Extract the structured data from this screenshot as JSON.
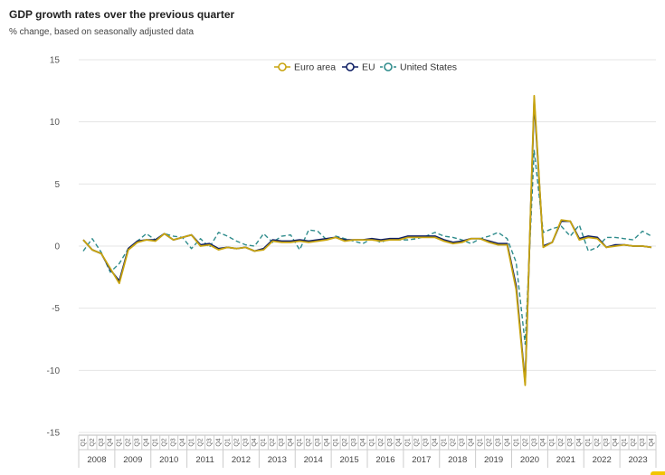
{
  "chart_data": {
    "type": "line",
    "title": "GDP growth rates over the previous quarter",
    "subtitle": "% change, based on seasonally adjusted data",
    "ylim": [
      -15,
      15
    ],
    "y_ticks": [
      15,
      10,
      5,
      0,
      -5,
      -10,
      -15
    ],
    "quarter_label": "Q",
    "years": [
      "2008",
      "2009",
      "2010",
      "2011",
      "2012",
      "2013",
      "2014",
      "2015",
      "2016",
      "2017",
      "2018",
      "2019",
      "2020",
      "2021",
      "2022",
      "2023"
    ],
    "legend": {
      "placement": "top-center"
    },
    "grid": true,
    "series": [
      {
        "name": "Euro area",
        "color": "#c8a40f",
        "dash": "solid",
        "values": [
          0.5,
          -0.3,
          -0.6,
          -1.8,
          -3.0,
          -0.3,
          0.3,
          0.5,
          0.4,
          1.0,
          0.5,
          0.7,
          0.9,
          0.0,
          0.1,
          -0.3,
          -0.1,
          -0.2,
          -0.1,
          -0.4,
          -0.3,
          0.4,
          0.3,
          0.3,
          0.4,
          0.3,
          0.4,
          0.5,
          0.7,
          0.4,
          0.5,
          0.5,
          0.5,
          0.4,
          0.5,
          0.5,
          0.7,
          0.7,
          0.7,
          0.7,
          0.4,
          0.2,
          0.3,
          0.6,
          0.6,
          0.3,
          0.1,
          0.1,
          -3.5,
          -11.2,
          12.1,
          -0.1,
          0.3,
          2.1,
          2.0,
          0.5,
          0.7,
          0.6,
          -0.1,
          0.0,
          0.1,
          0.0,
          0.0,
          -0.1
        ]
      },
      {
        "name": "EU",
        "color": "#0e1e64",
        "dash": "solid",
        "values": [
          0.5,
          -0.3,
          -0.6,
          -1.9,
          -2.8,
          -0.2,
          0.4,
          0.5,
          0.5,
          1.0,
          0.5,
          0.7,
          0.9,
          0.1,
          0.2,
          -0.2,
          -0.1,
          -0.2,
          -0.1,
          -0.4,
          -0.2,
          0.5,
          0.4,
          0.4,
          0.5,
          0.4,
          0.5,
          0.6,
          0.7,
          0.5,
          0.5,
          0.5,
          0.6,
          0.5,
          0.6,
          0.6,
          0.8,
          0.8,
          0.8,
          0.8,
          0.5,
          0.3,
          0.4,
          0.6,
          0.6,
          0.4,
          0.2,
          0.2,
          -3.2,
          -11.0,
          11.7,
          0.0,
          0.3,
          2.0,
          2.0,
          0.6,
          0.8,
          0.7,
          -0.1,
          0.1,
          0.1,
          0.0,
          0.0,
          -0.1
        ]
      },
      {
        "name": "United States",
        "color": "#2f8c8c",
        "dash": "dashed",
        "values": [
          -0.4,
          0.6,
          -0.5,
          -2.1,
          -1.4,
          -0.2,
          0.4,
          1.0,
          0.5,
          1.0,
          0.8,
          0.7,
          -0.2,
          0.6,
          -0.1,
          1.1,
          0.8,
          0.4,
          0.1,
          0.0,
          1.0,
          0.3,
          0.8,
          0.9,
          -0.3,
          1.3,
          1.2,
          0.5,
          0.8,
          0.6,
          0.4,
          0.2,
          0.6,
          0.3,
          0.6,
          0.5,
          0.5,
          0.6,
          0.8,
          1.1,
          0.8,
          0.7,
          0.5,
          0.2,
          0.6,
          0.8,
          1.1,
          0.6,
          -1.3,
          -7.9,
          7.7,
          1.1,
          1.4,
          1.6,
          0.8,
          1.7,
          -0.4,
          -0.1,
          0.7,
          0.7,
          0.6,
          0.5,
          1.2,
          0.8
        ]
      }
    ]
  }
}
